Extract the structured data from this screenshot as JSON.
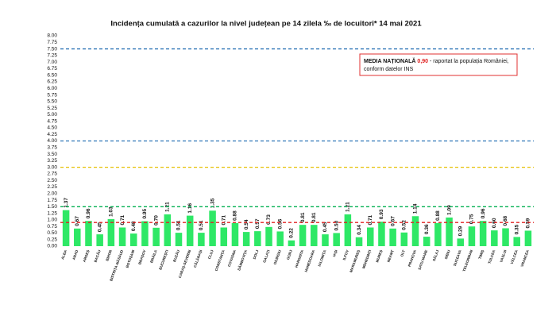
{
  "chart_data": {
    "type": "bar",
    "title": "Incidența cumulată a cazurilor la nivel județean pe 14 zilela ‰ de locuitori*  14 mai 2021",
    "categories": [
      "ALBA",
      "ARAD",
      "ARGEȘ",
      "BACĂU",
      "BIHOR",
      "BISTRIȚA-NĂSĂUD",
      "BOTOȘANI",
      "BRAȘOV",
      "BRĂILA",
      "BUCUREȘTI",
      "BUZĂU",
      "CARAȘ-SEVERIN",
      "CĂLĂRAȘI",
      "CLUJ",
      "CONSTANȚA",
      "COVASNA",
      "DÂMBOVIȚA",
      "DOLJ",
      "GALAȚI",
      "GIURGIU",
      "GORJ",
      "HARGHITA",
      "HUNEDOARA",
      "IALOMIȚA",
      "IAȘI",
      "ILFOV",
      "MARAMUREȘ",
      "MEHEDINȚI",
      "MUREȘ",
      "NEAMȚ",
      "OLT",
      "PRAHOVA",
      "SATU MARE",
      "SĂLAJ",
      "SIBIU",
      "SUCEAVA",
      "TELEORMAN",
      "TIMIȘ",
      "TULCEA",
      "VASLUI",
      "VÂLCEA",
      "VRANCEA"
    ],
    "values": [
      1.37,
      0.67,
      0.96,
      0.45,
      1.03,
      0.71,
      0.48,
      0.95,
      0.7,
      1.21,
      0.51,
      1.16,
      0.51,
      1.35,
      0.71,
      0.88,
      0.54,
      0.57,
      0.73,
      0.56,
      0.22,
      0.81,
      0.81,
      0.45,
      0.5,
      1.21,
      0.34,
      0.71,
      0.93,
      0.67,
      0.52,
      1.14,
      0.36,
      0.88,
      1.09,
      0.29,
      0.75,
      0.96,
      0.6,
      0.68,
      0.35,
      0.59
    ],
    "value_labels": [
      "1.37",
      "0.67",
      "0.96",
      "0.45",
      "1.03",
      "0.71",
      "0.48",
      "0.95",
      "0.70",
      "1.21",
      "0.51",
      "1.16",
      "0.51",
      "1.35",
      "0.71",
      "0.88",
      "0.54",
      "0.57",
      "0.73",
      "0.56",
      "0.22",
      "0.81",
      "0.81",
      "0.45",
      "0.50",
      "1.21",
      "0.34",
      "0.71",
      "0.93",
      "0.67",
      "0.52",
      "1.14",
      "0.36",
      "0.88",
      "1.09",
      "0.29",
      "0.75",
      "0.96",
      "0.60",
      "0.68",
      "0.35",
      "0.59"
    ],
    "color": "#2ee866",
    "ylim": [
      0,
      8
    ],
    "yticks": [
      {
        "value": 0,
        "label": "0.00"
      },
      {
        "value": 0.25,
        "label": "0.25"
      },
      {
        "value": 0.5,
        "label": "0.50"
      },
      {
        "value": 0.75,
        "label": "0.75"
      },
      {
        "value": 1,
        "label": "1.00"
      },
      {
        "value": 1.25,
        "label": "1.25"
      },
      {
        "value": 1.5,
        "label": "1.50"
      },
      {
        "value": 1.75,
        "label": "1.75"
      },
      {
        "value": 2,
        "label": "2.00"
      },
      {
        "value": 2.25,
        "label": "2.25"
      },
      {
        "value": 2.5,
        "label": "2.50"
      },
      {
        "value": 2.75,
        "label": "2.75"
      },
      {
        "value": 3,
        "label": "3.00"
      },
      {
        "value": 3.25,
        "label": "3.25"
      },
      {
        "value": 3.5,
        "label": "3.50"
      },
      {
        "value": 3.75,
        "label": "3.75"
      },
      {
        "value": 4,
        "label": "4.00"
      },
      {
        "value": 4.25,
        "label": "4.25"
      },
      {
        "value": 4.5,
        "label": "4.50"
      },
      {
        "value": 4.75,
        "label": "4.75"
      },
      {
        "value": 5,
        "label": "5.00"
      },
      {
        "value": 5.25,
        "label": "5.25"
      },
      {
        "value": 5.5,
        "label": "5.50"
      },
      {
        "value": 5.75,
        "label": "5.75"
      },
      {
        "value": 6,
        "label": "6.00"
      },
      {
        "value": 6.25,
        "label": "6.25"
      },
      {
        "value": 6.5,
        "label": "6.50"
      },
      {
        "value": 6.75,
        "label": "6.75"
      },
      {
        "value": 7,
        "label": "7.00"
      },
      {
        "value": 7.25,
        "label": "7.25"
      },
      {
        "value": 7.5,
        "label": "7.50"
      },
      {
        "value": 7.75,
        "label": "7.75"
      },
      {
        "value": 8,
        "label": "8.00"
      }
    ],
    "grid": false,
    "reference_lines": [
      {
        "value": 7.5,
        "color": "#2e75b6"
      },
      {
        "value": 4,
        "color": "#2e75b6"
      },
      {
        "value": 3,
        "color": "#e6c000"
      },
      {
        "value": 1.5,
        "color": "#00b050"
      },
      {
        "value": 0.9,
        "color": "#e02020"
      }
    ],
    "annotation": {
      "label": "MEDIA NAȚIONALĂ",
      "value_text": "0,90",
      "text": "- raportat la populația României,",
      "text2": "conform datelor INS"
    }
  }
}
